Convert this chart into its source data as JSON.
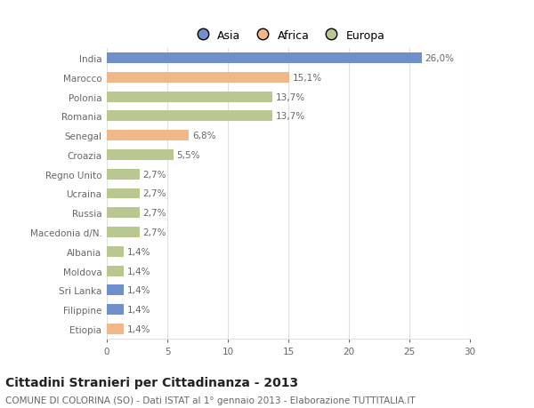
{
  "countries": [
    "India",
    "Marocco",
    "Polonia",
    "Romania",
    "Senegal",
    "Croazia",
    "Regno Unito",
    "Ucraina",
    "Russia",
    "Macedonia d/N.",
    "Albania",
    "Moldova",
    "Sri Lanka",
    "Filippine",
    "Etiopia"
  ],
  "values": [
    26.0,
    15.1,
    13.7,
    13.7,
    6.8,
    5.5,
    2.7,
    2.7,
    2.7,
    2.7,
    1.4,
    1.4,
    1.4,
    1.4,
    1.4
  ],
  "labels": [
    "26,0%",
    "15,1%",
    "13,7%",
    "13,7%",
    "6,8%",
    "5,5%",
    "2,7%",
    "2,7%",
    "2,7%",
    "2,7%",
    "1,4%",
    "1,4%",
    "1,4%",
    "1,4%",
    "1,4%"
  ],
  "continents": [
    "Asia",
    "Africa",
    "Europa",
    "Europa",
    "Africa",
    "Europa",
    "Europa",
    "Europa",
    "Europa",
    "Europa",
    "Europa",
    "Europa",
    "Asia",
    "Asia",
    "Africa"
  ],
  "colors": {
    "Asia": "#7090cc",
    "Africa": "#f0b888",
    "Europa": "#b8c890"
  },
  "legend_labels": [
    "Asia",
    "Africa",
    "Europa"
  ],
  "legend_colors": [
    "#7090cc",
    "#f0b888",
    "#b8c890"
  ],
  "title": "Cittadini Stranieri per Cittadinanza - 2013",
  "subtitle": "COMUNE DI COLORINA (SO) - Dati ISTAT al 1° gennaio 2013 - Elaborazione TUTTITALIA.IT",
  "xlim": [
    0,
    30
  ],
  "xticks": [
    0,
    5,
    10,
    15,
    20,
    25,
    30
  ],
  "bg_color": "#ffffff",
  "grid_color": "#e0e0e0",
  "bar_height": 0.55,
  "label_fontsize": 7.5,
  "tick_fontsize": 7.5,
  "title_fontsize": 10,
  "subtitle_fontsize": 7.5
}
